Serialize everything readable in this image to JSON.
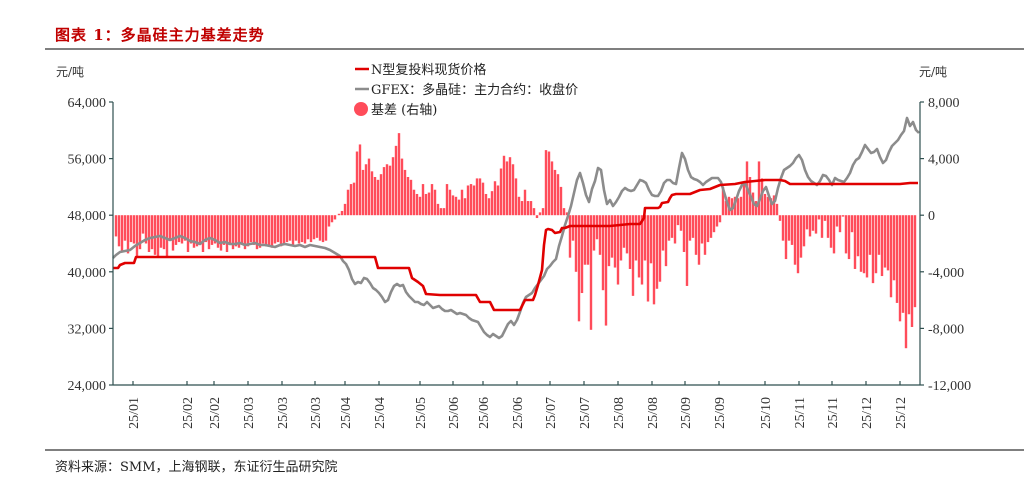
{
  "header": {
    "title": "图表 1：多晶硅主力基差走势"
  },
  "footer": {
    "source": "资料来源：SMM，上海钢联，东证衍生品研究院"
  },
  "colors": {
    "title": "#c00000",
    "spot_line": "#e00000",
    "futures_line": "#8c8c8c",
    "basis_bar": "#ff4c5a",
    "axis": "#2f4f4f",
    "rule": "#7f7f7f"
  },
  "chart_data": {
    "type": "line+bar",
    "title": "多晶硅主力基差走势",
    "left_axis": {
      "label": "元/吨",
      "ticks": [
        "64,000",
        "56,000",
        "48,000",
        "40,000",
        "32,000",
        "24,000"
      ],
      "range": [
        24000,
        64000
      ]
    },
    "right_axis": {
      "label": "元/吨",
      "ticks": [
        "8,000",
        "4,000",
        "0",
        "-4,000",
        "-8,000",
        "-12,000"
      ],
      "range": [
        -12000,
        8000
      ]
    },
    "x_tick_labels": [
      "25/01",
      "25/02",
      "25/02",
      "25/03",
      "25/03",
      "25/03",
      "25/04",
      "25/04",
      "25/05",
      "25/06",
      "25/06",
      "25/06",
      "25/07",
      "25/07",
      "25/08",
      "25/08",
      "25/09",
      "25/09",
      "25/10",
      "25/11",
      "25/11",
      "25/12",
      "25/12"
    ],
    "legend": [
      {
        "name": "N型复投料现货价格",
        "type": "line",
        "color": "#e00000",
        "axis": "left"
      },
      {
        "name": "GFEX：多晶硅：主力合约：收盘价",
        "type": "line",
        "color": "#8c8c8c",
        "axis": "left"
      },
      {
        "name": "基差 (右轴)",
        "type": "bar",
        "color": "#ff4c5a",
        "axis": "right"
      }
    ],
    "series": [
      {
        "name": "N型复投料现货价格",
        "approx_points": [
          [
            "25/01",
            40800
          ],
          [
            "25/01",
            41300
          ],
          [
            "25/01",
            42000
          ],
          [
            "25/02",
            42000
          ],
          [
            "25/03",
            42000
          ],
          [
            "25/04",
            42000
          ],
          [
            "25/04",
            40500
          ],
          [
            "25/05",
            39000
          ],
          [
            "25/05",
            37300
          ],
          [
            "25/06",
            37300
          ],
          [
            "25/06",
            36200
          ],
          [
            "25/06",
            35000
          ],
          [
            "25/07",
            35000
          ],
          [
            "25/07",
            36500
          ],
          [
            "25/07",
            46500
          ],
          [
            "25/07",
            46000
          ],
          [
            "25/07",
            47000
          ],
          [
            "25/08",
            47000
          ],
          [
            "25/08",
            49000
          ],
          [
            "25/08",
            50500
          ],
          [
            "25/09",
            51500
          ],
          [
            "25/09",
            52500
          ],
          [
            "25/10",
            52700
          ],
          [
            "25/10",
            52800
          ],
          [
            "25/11",
            52500
          ],
          [
            "25/12",
            52600
          ],
          [
            "25/12",
            52700
          ]
        ]
      },
      {
        "name": "GFEX：多晶硅：主力合约：收盘价",
        "approx_points": [
          [
            "25/01",
            41500
          ],
          [
            "25/01",
            42800
          ],
          [
            "25/02",
            43500
          ],
          [
            "25/02",
            45000
          ],
          [
            "25/03",
            44000
          ],
          [
            "25/03",
            44500
          ],
          [
            "25/04",
            43800
          ],
          [
            "25/04",
            42000
          ],
          [
            "25/04",
            39000
          ],
          [
            "25/05",
            37500
          ],
          [
            "25/05",
            36000
          ],
          [
            "25/06",
            35000
          ],
          [
            "25/06",
            34500
          ],
          [
            "25/06",
            31000
          ],
          [
            "25/07",
            33000
          ],
          [
            "25/07",
            38000
          ],
          [
            "25/07",
            45000
          ],
          [
            "25/07",
            52000
          ],
          [
            "25/08",
            49500
          ],
          [
            "25/08",
            53500
          ],
          [
            "25/08",
            51000
          ],
          [
            "25/09",
            56500
          ],
          [
            "25/09",
            53000
          ],
          [
            "25/09",
            52000
          ],
          [
            "25/10",
            48500
          ],
          [
            "25/10",
            52000
          ],
          [
            "25/11",
            56000
          ],
          [
            "25/11",
            54000
          ],
          [
            "25/11",
            52500
          ],
          [
            "25/12",
            57500
          ],
          [
            "25/12",
            55000
          ],
          [
            "25/12",
            61500
          ],
          [
            "25/12",
            59500
          ]
        ]
      },
      {
        "name": "基差 (右轴)",
        "approx_ranges": [
          {
            "period": "25/01–25/04",
            "min": -3000,
            "max": -1000
          },
          {
            "period": "25/04–25/05",
            "min": 0,
            "max": 5000
          },
          {
            "period": "25/05–25/06",
            "min": 500,
            "max": 2500
          },
          {
            "period": "25/06–25/07",
            "min": 1000,
            "max": 4200
          },
          {
            "period": "25/07 early",
            "min": 0,
            "max": 4700
          },
          {
            "period": "25/07–25/08",
            "min": -8000,
            "max": -1500
          },
          {
            "period": "25/09",
            "min": -5000,
            "max": -500
          },
          {
            "period": "25/09–25/10",
            "min": 0,
            "max": 4000
          },
          {
            "period": "25/10–25/11",
            "min": -4000,
            "max": -300
          },
          {
            "period": "25/12",
            "min": -9400,
            "max": -1500
          }
        ]
      }
    ]
  }
}
